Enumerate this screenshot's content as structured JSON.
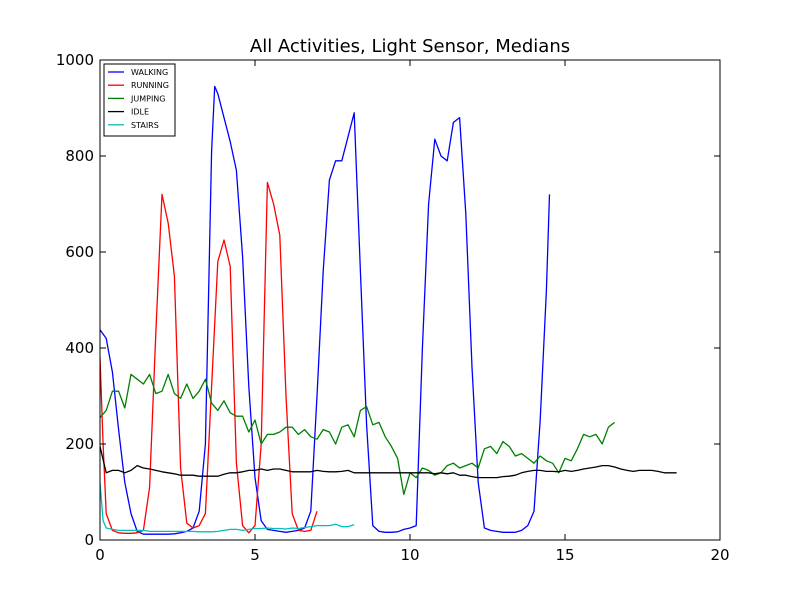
{
  "chart_data": {
    "type": "line",
    "title": "All Activities, Light Sensor, Medians",
    "xlabel": "",
    "ylabel": "",
    "xlim": [
      0,
      20
    ],
    "ylim": [
      0,
      1000
    ],
    "xticks": [
      0,
      5,
      10,
      15,
      20
    ],
    "yticks": [
      0,
      200,
      400,
      600,
      800,
      1000
    ],
    "grid": false,
    "legend_position": "top-left",
    "series": [
      {
        "name": "WALKING",
        "color": "#0000ff",
        "x": [
          0,
          0.2,
          0.4,
          0.6,
          0.8,
          1.0,
          1.2,
          1.4,
          1.6,
          1.8,
          2.0,
          2.2,
          2.4,
          2.6,
          2.8,
          3.0,
          3.2,
          3.4,
          3.6,
          3.7,
          3.8,
          4.0,
          4.2,
          4.4,
          4.6,
          4.8,
          5.0,
          5.2,
          5.4,
          5.6,
          5.8,
          6.0,
          6.2,
          6.4,
          6.6,
          6.8,
          7.0,
          7.2,
          7.4,
          7.6,
          7.8,
          8.0,
          8.2,
          8.4,
          8.6,
          8.8,
          9.0,
          9.2,
          9.4,
          9.6,
          9.8,
          10.0,
          10.2,
          10.4,
          10.6,
          10.8,
          11.0,
          11.2,
          11.4,
          11.6,
          11.8,
          12.0,
          12.2,
          12.4,
          12.6,
          12.8,
          13.0,
          13.2,
          13.4,
          13.6,
          13.8,
          14.0,
          14.2,
          14.4,
          14.5
        ],
        "y": [
          438,
          420,
          350,
          230,
          120,
          55,
          18,
          12,
          12,
          12,
          12,
          12,
          13,
          15,
          18,
          25,
          60,
          200,
          810,
          945,
          930,
          880,
          830,
          770,
          590,
          320,
          130,
          40,
          22,
          20,
          18,
          16,
          18,
          20,
          25,
          60,
          300,
          560,
          750,
          790,
          790,
          840,
          890,
          560,
          240,
          30,
          18,
          16,
          16,
          17,
          22,
          25,
          30,
          400,
          700,
          835,
          800,
          790,
          870,
          880,
          680,
          360,
          120,
          25,
          20,
          18,
          16,
          16,
          16,
          20,
          30,
          60,
          250,
          520,
          720
        ]
      },
      {
        "name": "RUNNING",
        "color": "#ff0000",
        "x": [
          0,
          0.1,
          0.2,
          0.4,
          0.6,
          0.8,
          1.0,
          1.2,
          1.4,
          1.6,
          1.8,
          2.0,
          2.2,
          2.4,
          2.6,
          2.8,
          3.0,
          3.2,
          3.4,
          3.6,
          3.8,
          4.0,
          4.2,
          4.4,
          4.6,
          4.8,
          5.0,
          5.2,
          5.4,
          5.6,
          5.8,
          6.0,
          6.2,
          6.4,
          6.6,
          6.8,
          7.0
        ],
        "y": [
          380,
          200,
          55,
          20,
          15,
          14,
          14,
          15,
          20,
          110,
          430,
          720,
          660,
          550,
          150,
          35,
          25,
          30,
          55,
          320,
          580,
          625,
          570,
          160,
          30,
          15,
          30,
          200,
          745,
          700,
          635,
          300,
          55,
          20,
          18,
          20,
          60
        ]
      },
      {
        "name": "JUMPING",
        "color": "#008000",
        "x": [
          0,
          0.2,
          0.4,
          0.6,
          0.8,
          1.0,
          1.2,
          1.4,
          1.6,
          1.8,
          2.0,
          2.2,
          2.4,
          2.6,
          2.8,
          3.0,
          3.2,
          3.4,
          3.6,
          3.8,
          4.0,
          4.2,
          4.4,
          4.6,
          4.8,
          5.0,
          5.2,
          5.4,
          5.6,
          5.8,
          6.0,
          6.2,
          6.4,
          6.6,
          6.8,
          7.0,
          7.2,
          7.4,
          7.6,
          7.8,
          8.0,
          8.2,
          8.4,
          8.6,
          8.8,
          9.0,
          9.2,
          9.4,
          9.6,
          9.8,
          10.0,
          10.2,
          10.4,
          10.6,
          10.8,
          11.0,
          11.2,
          11.4,
          11.6,
          11.8,
          12.0,
          12.2,
          12.4,
          12.6,
          12.8,
          13.0,
          13.2,
          13.4,
          13.6,
          13.8,
          14.0,
          14.2,
          14.4,
          14.6,
          14.8,
          15.0,
          15.2,
          15.4,
          15.6,
          15.8,
          16.0,
          16.2,
          16.4,
          16.6
        ],
        "y": [
          255,
          270,
          310,
          310,
          275,
          345,
          335,
          325,
          345,
          305,
          310,
          345,
          305,
          295,
          325,
          295,
          310,
          335,
          285,
          270,
          290,
          265,
          258,
          258,
          225,
          250,
          200,
          220,
          220,
          225,
          235,
          235,
          220,
          230,
          215,
          210,
          230,
          225,
          200,
          235,
          240,
          215,
          270,
          278,
          240,
          245,
          215,
          195,
          170,
          95,
          140,
          130,
          150,
          145,
          135,
          140,
          155,
          160,
          150,
          155,
          160,
          150,
          190,
          195,
          180,
          205,
          195,
          175,
          180,
          170,
          160,
          175,
          165,
          160,
          140,
          170,
          165,
          190,
          220,
          215,
          220,
          200,
          235,
          245
        ]
      },
      {
        "name": "IDLE",
        "color": "#000000",
        "x": [
          0,
          0.2,
          0.4,
          0.6,
          0.8,
          1.0,
          1.2,
          1.4,
          1.6,
          1.8,
          2.0,
          2.2,
          2.4,
          2.6,
          2.8,
          3.0,
          3.2,
          3.4,
          3.6,
          3.8,
          4.0,
          4.2,
          4.4,
          4.6,
          4.8,
          5.0,
          5.2,
          5.4,
          5.6,
          5.8,
          6.0,
          6.2,
          6.4,
          6.6,
          6.8,
          7.0,
          7.2,
          7.4,
          7.6,
          7.8,
          8.0,
          8.2,
          8.4,
          8.6,
          8.8,
          9.0,
          9.2,
          9.4,
          9.6,
          9.8,
          10.0,
          10.2,
          10.4,
          10.6,
          10.8,
          11.0,
          11.2,
          11.4,
          11.6,
          11.8,
          12.0,
          12.2,
          12.4,
          12.6,
          12.8,
          13.0,
          13.2,
          13.4,
          13.6,
          13.8,
          14.0,
          14.2,
          14.4,
          14.6,
          14.8,
          15.0,
          15.2,
          15.4,
          15.6,
          15.8,
          16.0,
          16.2,
          16.4,
          16.6,
          16.8,
          17.0,
          17.2,
          17.4,
          17.6,
          17.8,
          18.0,
          18.2,
          18.4,
          18.6
        ],
        "y": [
          195,
          140,
          145,
          145,
          140,
          145,
          155,
          150,
          148,
          145,
          142,
          140,
          138,
          135,
          135,
          135,
          133,
          133,
          133,
          133,
          137,
          140,
          140,
          142,
          145,
          145,
          148,
          145,
          148,
          148,
          145,
          142,
          142,
          142,
          142,
          145,
          143,
          142,
          142,
          143,
          145,
          140,
          140,
          140,
          140,
          140,
          140,
          140,
          140,
          140,
          140,
          140,
          140,
          140,
          138,
          140,
          138,
          140,
          135,
          135,
          132,
          130,
          130,
          130,
          130,
          132,
          133,
          135,
          140,
          143,
          145,
          145,
          143,
          143,
          142,
          145,
          143,
          145,
          148,
          150,
          152,
          155,
          155,
          152,
          148,
          145,
          143,
          145,
          145,
          145,
          143,
          140,
          140,
          140
        ]
      },
      {
        "name": "STAIRS",
        "color": "#00bfbf",
        "x": [
          0,
          0.1,
          0.2,
          0.4,
          0.6,
          0.8,
          1.0,
          1.2,
          1.4,
          1.6,
          1.8,
          2.0,
          2.2,
          2.4,
          2.6,
          2.8,
          3.0,
          3.2,
          3.4,
          3.6,
          3.8,
          4.0,
          4.2,
          4.4,
          4.6,
          4.8,
          5.0,
          5.2,
          5.4,
          5.6,
          5.8,
          6.0,
          6.2,
          6.4,
          6.6,
          6.8,
          7.0,
          7.2,
          7.4,
          7.6,
          7.8,
          8.0,
          8.2
        ],
        "y": [
          120,
          40,
          25,
          22,
          20,
          20,
          20,
          20,
          20,
          18,
          18,
          18,
          18,
          18,
          18,
          18,
          18,
          17,
          17,
          17,
          18,
          20,
          22,
          22,
          20,
          22,
          24,
          24,
          25,
          24,
          24,
          23,
          25,
          24,
          26,
          28,
          30,
          30,
          30,
          33,
          28,
          28,
          32
        ]
      }
    ]
  }
}
